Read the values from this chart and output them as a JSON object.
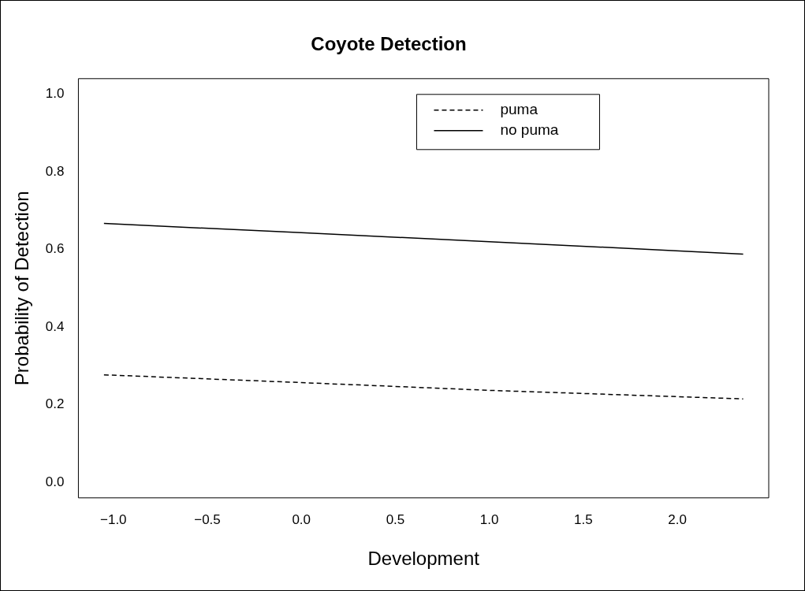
{
  "chart_data": {
    "type": "line",
    "title": "Coyote Detection",
    "xlabel": "Development",
    "ylabel": "Probability of Detection",
    "series": [
      {
        "name": "puma",
        "color": "#000000",
        "line_style": "dashed",
        "x": [
          -1.05,
          0,
          1,
          2.35
        ],
        "values": [
          0.277,
          0.257,
          0.237,
          0.215
        ]
      },
      {
        "name": "no puma",
        "color": "#000000",
        "line_style": "solid",
        "x": [
          -1.05,
          0,
          1,
          2.35
        ],
        "values": [
          0.667,
          0.643,
          0.62,
          0.588
        ]
      }
    ],
    "xlim": [
      -1.186,
      2.486
    ],
    "xticks": [
      {
        "value": -1,
        "label": "−1.0"
      },
      {
        "value": -0.5,
        "label": "−0.5"
      },
      {
        "value": 0,
        "label": "0.0"
      },
      {
        "value": 0.5,
        "label": "0.5"
      },
      {
        "value": 1,
        "label": "1.0"
      },
      {
        "value": 1.5,
        "label": "1.5"
      },
      {
        "value": 2,
        "label": "2.0"
      }
    ],
    "ylim": [
      -0.04,
      1.04
    ],
    "yticks": [
      {
        "value": 0,
        "label": "0.0"
      },
      {
        "value": 0.2,
        "label": "0.2"
      },
      {
        "value": 0.4,
        "label": "0.4"
      },
      {
        "value": 0.6,
        "label": "0.6"
      },
      {
        "value": 0.8,
        "label": "0.8"
      },
      {
        "value": 1,
        "label": "1.0"
      }
    ],
    "grid": false,
    "legend": "top right",
    "marker": "none"
  }
}
